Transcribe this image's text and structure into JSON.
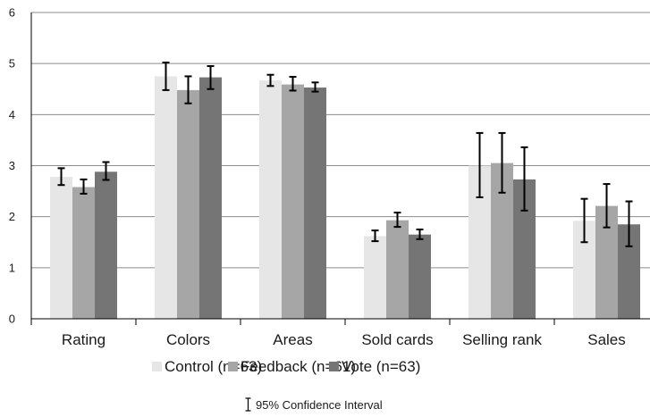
{
  "chart_data": {
    "type": "bar",
    "categories": [
      "Rating",
      "Colors",
      "Areas",
      "Sold cards",
      "Selling rank",
      "Sales"
    ],
    "series": [
      {
        "name": "Control (n=63)",
        "color": "#e6e6e6",
        "values": [
          2.78,
          4.75,
          4.67,
          1.62,
          3.0,
          1.92
        ],
        "ci_low": [
          2.62,
          4.48,
          4.56,
          1.52,
          2.38,
          1.5
        ],
        "ci_high": [
          2.95,
          5.02,
          4.78,
          1.73,
          3.64,
          2.35
        ]
      },
      {
        "name": "Feedback (n=61)",
        "color": "#a6a6a6",
        "values": [
          2.58,
          4.48,
          4.59,
          1.93,
          3.05,
          2.21
        ],
        "ci_low": [
          2.45,
          4.22,
          4.47,
          1.8,
          2.47,
          1.79
        ],
        "ci_high": [
          2.73,
          4.75,
          4.74,
          2.08,
          3.64,
          2.64
        ]
      },
      {
        "name": "Vote (n=63)",
        "color": "#757575",
        "values": [
          2.88,
          4.73,
          4.53,
          1.65,
          2.73,
          1.85
        ],
        "ci_low": [
          2.72,
          4.5,
          4.45,
          1.56,
          2.12,
          1.42
        ],
        "ci_high": [
          3.07,
          4.95,
          4.63,
          1.75,
          3.36,
          2.3
        ]
      }
    ],
    "ylim": [
      0,
      6
    ],
    "yticks": [
      "0",
      "1",
      "2",
      "3",
      "4",
      "5",
      "6"
    ],
    "grid": true,
    "legend_position": "bottom",
    "error_bar_legend": "95% Confidence Interval"
  }
}
